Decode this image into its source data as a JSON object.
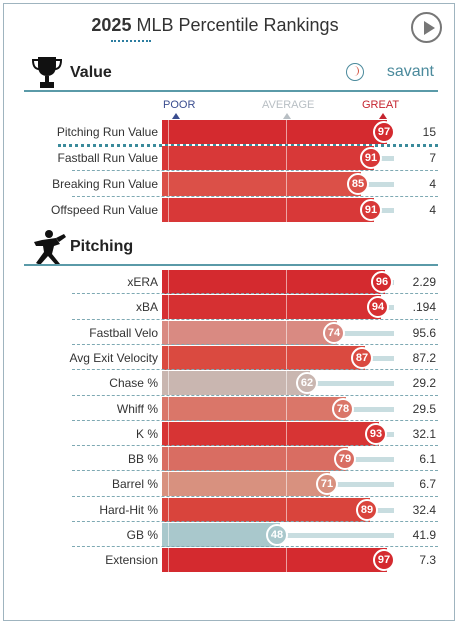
{
  "header": {
    "year": "2025",
    "title_rest": "MLB Percentile Rankings",
    "play_icon": "play-icon"
  },
  "value_section": {
    "label": "Value",
    "icon": "trophy-icon",
    "brand": "savant",
    "brand_icon": "baseball-icon"
  },
  "scale": {
    "poor": "POOR",
    "average": "AVERAGE",
    "great": "GREAT"
  },
  "value_rows": [
    {
      "name": "Pitching Run Value",
      "percentile": 97,
      "value": "15",
      "color": "#d42a2f"
    },
    {
      "name": "Fastball Run Value",
      "percentile": 91,
      "value": "7",
      "color": "#d83838"
    },
    {
      "name": "Breaking Run Value",
      "percentile": 85,
      "value": "4",
      "color": "#db5048"
    },
    {
      "name": "Offspeed Run Value",
      "percentile": 91,
      "value": "4",
      "color": "#d83838"
    }
  ],
  "pitching_section": {
    "label": "Pitching",
    "icon": "pitcher-icon"
  },
  "pitching_rows": [
    {
      "name": "xERA",
      "percentile": 96,
      "value": "2.29",
      "color": "#d42a2f"
    },
    {
      "name": "xBA",
      "percentile": 94,
      "value": ".194",
      "color": "#d63032"
    },
    {
      "name": "Fastball Velo",
      "percentile": 74,
      "value": "95.6",
      "color": "#d98a82"
    },
    {
      "name": "Avg Exit Velocity",
      "percentile": 87,
      "value": "87.2",
      "color": "#da4a40"
    },
    {
      "name": "Chase %",
      "percentile": 62,
      "value": "29.2",
      "color": "#c9b6b0"
    },
    {
      "name": "Whiff %",
      "percentile": 78,
      "value": "29.5",
      "color": "#da7669"
    },
    {
      "name": "K %",
      "percentile": 93,
      "value": "32.1",
      "color": "#d73434"
    },
    {
      "name": "BB %",
      "percentile": 79,
      "value": "6.1",
      "color": "#d96d62"
    },
    {
      "name": "Barrel %",
      "percentile": 71,
      "value": "6.7",
      "color": "#d8917f"
    },
    {
      "name": "Hard-Hit %",
      "percentile": 89,
      "value": "32.4",
      "color": "#d9443c"
    },
    {
      "name": "GB %",
      "percentile": 48,
      "value": "41.9",
      "color": "#a9c8cc"
    },
    {
      "name": "Extension",
      "percentile": 97,
      "value": "7.3",
      "color": "#d42a2f"
    }
  ]
}
